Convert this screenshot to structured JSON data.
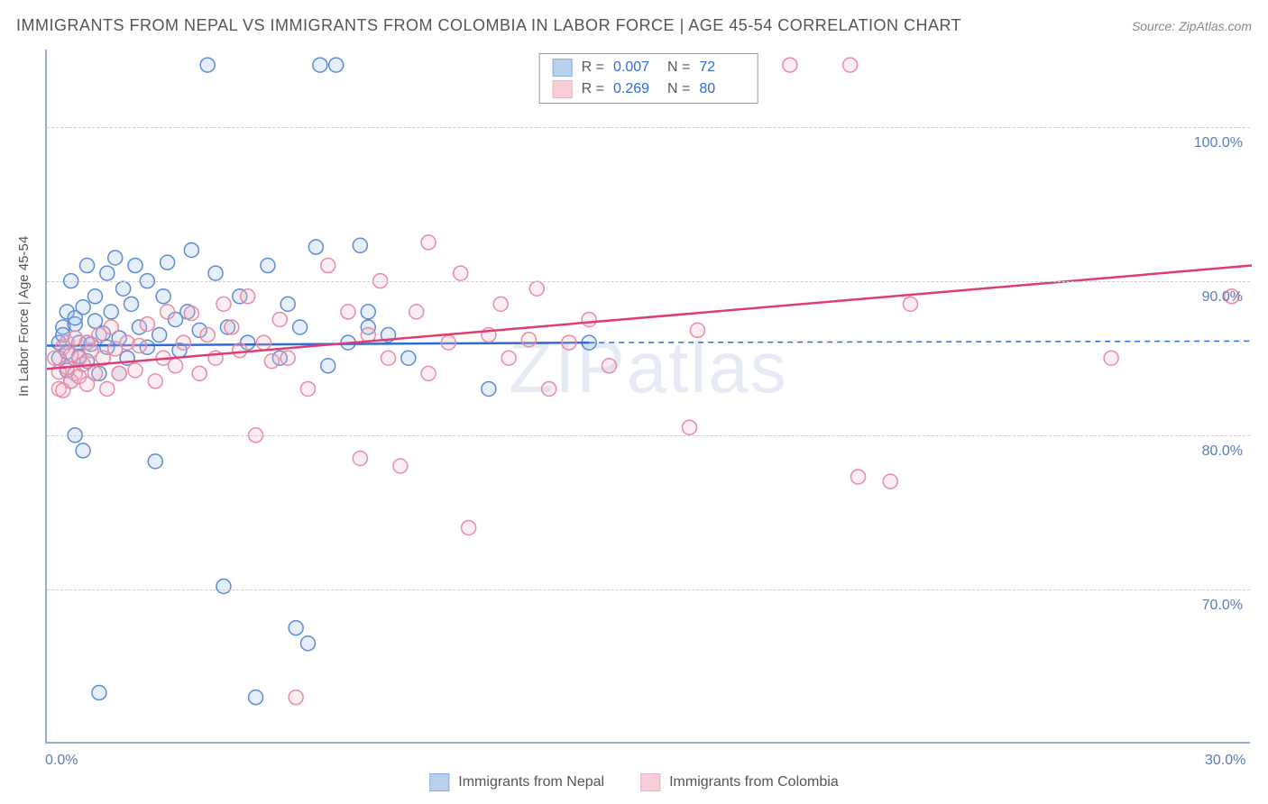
{
  "title": "IMMIGRANTS FROM NEPAL VS IMMIGRANTS FROM COLOMBIA IN LABOR FORCE | AGE 45-54 CORRELATION CHART",
  "source": "Source: ZipAtlas.com",
  "y_axis_title": "In Labor Force | Age 45-54",
  "watermark_a": "ZIP",
  "watermark_b": "atlas",
  "chart": {
    "type": "scatter",
    "xlim": [
      0,
      30
    ],
    "ylim": [
      60,
      105
    ],
    "x_ticks": [
      0,
      30
    ],
    "x_tick_labels": [
      "0.0%",
      "30.0%"
    ],
    "y_grid": [
      70,
      80,
      90,
      100
    ],
    "y_grid_labels": [
      "70.0%",
      "80.0%",
      "90.0%",
      "100.0%"
    ],
    "grid_color": "#cccccc",
    "axis_color": "#96aed6",
    "tick_label_color": "#5b7bb8",
    "background_color": "#ffffff",
    "marker_radius": 8,
    "marker_stroke_width": 1.5,
    "marker_fill_opacity": 0.25,
    "line_width": 2.5
  },
  "series": [
    {
      "name": "Immigrants from Nepal",
      "color_fill": "#9cbce8",
      "color_stroke": "#5b8cd3",
      "line_color": "#2e6bd6",
      "r_value": "0.007",
      "n_value": "72",
      "trend": {
        "x1": 0,
        "y1": 85.8,
        "x2": 13.5,
        "y2": 86.0
      },
      "trend_ext": {
        "x1": 13.5,
        "y1": 86.0,
        "x2": 30,
        "y2": 86.1
      },
      "points": [
        [
          0.3,
          86.0
        ],
        [
          0.3,
          85.0
        ],
        [
          0.4,
          87.0
        ],
        [
          0.4,
          86.5
        ],
        [
          0.5,
          88.0
        ],
        [
          0.5,
          85.4
        ],
        [
          0.5,
          84.2
        ],
        [
          0.6,
          90.0
        ],
        [
          0.6,
          83.5
        ],
        [
          0.7,
          80.0
        ],
        [
          0.7,
          87.2
        ],
        [
          0.7,
          87.6
        ],
        [
          0.8,
          86.0
        ],
        [
          0.8,
          85.1
        ],
        [
          0.9,
          79.0
        ],
        [
          0.9,
          88.3
        ],
        [
          1.0,
          91.0
        ],
        [
          1.0,
          86.0
        ],
        [
          1.0,
          84.8
        ],
        [
          1.1,
          85.9
        ],
        [
          1.2,
          89.0
        ],
        [
          1.2,
          87.4
        ],
        [
          1.3,
          84.0
        ],
        [
          1.3,
          63.3
        ],
        [
          1.4,
          86.6
        ],
        [
          1.5,
          90.5
        ],
        [
          1.5,
          85.7
        ],
        [
          1.6,
          88.0
        ],
        [
          1.7,
          91.5
        ],
        [
          1.8,
          86.3
        ],
        [
          1.8,
          84.0
        ],
        [
          1.9,
          89.5
        ],
        [
          2.0,
          85.0
        ],
        [
          2.1,
          88.5
        ],
        [
          2.2,
          91.0
        ],
        [
          2.3,
          87.0
        ],
        [
          2.5,
          90.0
        ],
        [
          2.5,
          85.7
        ],
        [
          2.7,
          78.3
        ],
        [
          2.8,
          86.5
        ],
        [
          2.9,
          89.0
        ],
        [
          3.0,
          91.2
        ],
        [
          3.2,
          87.5
        ],
        [
          3.3,
          85.5
        ],
        [
          3.5,
          88.0
        ],
        [
          3.6,
          92.0
        ],
        [
          3.8,
          86.8
        ],
        [
          4.0,
          104.0
        ],
        [
          4.2,
          90.5
        ],
        [
          4.4,
          70.2
        ],
        [
          4.5,
          87.0
        ],
        [
          4.8,
          89.0
        ],
        [
          5.0,
          86.0
        ],
        [
          5.2,
          63.0
        ],
        [
          5.5,
          91.0
        ],
        [
          5.8,
          85.0
        ],
        [
          6.0,
          88.5
        ],
        [
          6.2,
          67.5
        ],
        [
          6.3,
          87.0
        ],
        [
          6.5,
          66.5
        ],
        [
          6.7,
          92.2
        ],
        [
          6.8,
          104.0
        ],
        [
          7.0,
          84.5
        ],
        [
          7.2,
          104.0
        ],
        [
          7.5,
          86.0
        ],
        [
          7.8,
          92.3
        ],
        [
          8.0,
          88.0
        ],
        [
          8.0,
          87.0
        ],
        [
          8.5,
          86.5
        ],
        [
          9.0,
          85.0
        ],
        [
          11.0,
          83.0
        ],
        [
          13.5,
          86.0
        ]
      ]
    },
    {
      "name": "Immigrants from Colombia",
      "color_fill": "#f5b8c8",
      "color_stroke": "#e88ba5",
      "line_color": "#e03b73",
      "r_value": "0.269",
      "n_value": "80",
      "trend": {
        "x1": 0,
        "y1": 84.3,
        "x2": 30,
        "y2": 91.0
      },
      "points": [
        [
          0.2,
          85.0
        ],
        [
          0.3,
          84.1
        ],
        [
          0.3,
          83.0
        ],
        [
          0.4,
          85.7
        ],
        [
          0.4,
          82.9
        ],
        [
          0.5,
          86.0
        ],
        [
          0.5,
          84.4
        ],
        [
          0.6,
          83.5
        ],
        [
          0.6,
          85.2
        ],
        [
          0.7,
          84.0
        ],
        [
          0.7,
          86.3
        ],
        [
          0.8,
          83.8
        ],
        [
          0.8,
          85.0
        ],
        [
          0.9,
          84.6
        ],
        [
          1.0,
          86.0
        ],
        [
          1.0,
          83.3
        ],
        [
          1.1,
          85.5
        ],
        [
          1.2,
          84.0
        ],
        [
          1.3,
          86.5
        ],
        [
          1.4,
          85.0
        ],
        [
          1.5,
          83.0
        ],
        [
          1.6,
          87.0
        ],
        [
          1.7,
          85.6
        ],
        [
          1.8,
          84.0
        ],
        [
          2.0,
          86.0
        ],
        [
          2.2,
          84.2
        ],
        [
          2.3,
          85.8
        ],
        [
          2.5,
          87.2
        ],
        [
          2.7,
          83.5
        ],
        [
          2.9,
          85.0
        ],
        [
          3.0,
          88.0
        ],
        [
          3.2,
          84.5
        ],
        [
          3.4,
          86.0
        ],
        [
          3.6,
          87.9
        ],
        [
          3.8,
          84.0
        ],
        [
          4.0,
          86.5
        ],
        [
          4.2,
          85.0
        ],
        [
          4.4,
          88.5
        ],
        [
          4.6,
          87.0
        ],
        [
          4.8,
          85.5
        ],
        [
          5.0,
          89.0
        ],
        [
          5.2,
          80.0
        ],
        [
          5.4,
          86.0
        ],
        [
          5.6,
          84.8
        ],
        [
          5.8,
          87.5
        ],
        [
          6.0,
          85.0
        ],
        [
          6.2,
          63.0
        ],
        [
          6.5,
          83.0
        ],
        [
          7.0,
          91.0
        ],
        [
          7.5,
          88.0
        ],
        [
          7.8,
          78.5
        ],
        [
          8.0,
          86.5
        ],
        [
          8.3,
          90.0
        ],
        [
          8.5,
          85.0
        ],
        [
          8.8,
          78.0
        ],
        [
          9.2,
          88.0
        ],
        [
          9.5,
          84.0
        ],
        [
          9.5,
          92.5
        ],
        [
          10.0,
          86.0
        ],
        [
          10.3,
          90.5
        ],
        [
          10.5,
          74.0
        ],
        [
          11.0,
          86.5
        ],
        [
          11.3,
          88.5
        ],
        [
          11.5,
          85.0
        ],
        [
          12.0,
          86.2
        ],
        [
          12.2,
          89.5
        ],
        [
          12.5,
          83.0
        ],
        [
          13.0,
          86.0
        ],
        [
          13.5,
          87.5
        ],
        [
          14.0,
          84.5
        ],
        [
          16.0,
          80.5
        ],
        [
          16.2,
          86.8
        ],
        [
          17.5,
          104.0
        ],
        [
          18.5,
          104.0
        ],
        [
          20.0,
          104.0
        ],
        [
          20.2,
          77.3
        ],
        [
          21.5,
          88.5
        ],
        [
          26.5,
          85.0
        ],
        [
          29.5,
          89.0
        ],
        [
          21.0,
          77.0
        ]
      ]
    }
  ],
  "legend": {
    "stat_prefix_r": "R =",
    "stat_prefix_n": "N ="
  }
}
